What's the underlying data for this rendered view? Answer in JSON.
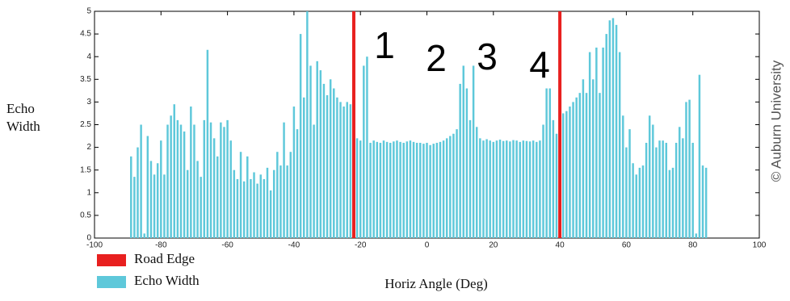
{
  "chart_data": {
    "type": "bar",
    "ylabel": "Echo Width",
    "xlabel": "Horiz Angle (Deg)",
    "watermark": "© Auburn University",
    "annotations": [
      "1",
      "2",
      "3",
      "4"
    ],
    "xlim": [
      -100,
      100
    ],
    "xticks": [
      -100,
      -80,
      -60,
      -40,
      -20,
      0,
      20,
      40,
      60,
      80,
      100
    ],
    "ylim": [
      0,
      5
    ],
    "yticks": [
      0,
      0.5,
      1,
      1.5,
      2,
      2.5,
      3,
      3.5,
      4,
      4.5,
      5
    ],
    "x": [
      -89,
      -88,
      -87,
      -86,
      -85,
      -84,
      -83,
      -82,
      -81,
      -80,
      -79,
      -78,
      -77,
      -76,
      -75,
      -74,
      -73,
      -72,
      -71,
      -70,
      -69,
      -68,
      -67,
      -66,
      -65,
      -64,
      -63,
      -62,
      -61,
      -60,
      -59,
      -58,
      -57,
      -56,
      -55,
      -54,
      -53,
      -52,
      -51,
      -50,
      -49,
      -48,
      -47,
      -46,
      -45,
      -44,
      -43,
      -42,
      -41,
      -40,
      -39,
      -38,
      -37,
      -36,
      -35,
      -34,
      -33,
      -32,
      -31,
      -30,
      -29,
      -28,
      -27,
      -26,
      -25,
      -24,
      -23,
      -22,
      -21,
      -20,
      -19,
      -18,
      -17,
      -16,
      -15,
      -14,
      -13,
      -12,
      -11,
      -10,
      -9,
      -8,
      -7,
      -6,
      -5,
      -4,
      -3,
      -2,
      -1,
      0,
      1,
      2,
      3,
      4,
      5,
      6,
      7,
      8,
      9,
      10,
      11,
      12,
      13,
      14,
      15,
      16,
      17,
      18,
      19,
      20,
      21,
      22,
      23,
      24,
      25,
      26,
      27,
      28,
      29,
      30,
      31,
      32,
      33,
      34,
      35,
      36,
      37,
      38,
      39,
      40,
      41,
      42,
      43,
      44,
      45,
      46,
      47,
      48,
      49,
      50,
      51,
      52,
      53,
      54,
      55,
      56,
      57,
      58,
      59,
      60,
      61,
      62,
      63,
      64,
      65,
      66,
      67,
      68,
      69,
      70,
      71,
      72,
      73,
      74,
      75,
      76,
      77,
      78,
      79,
      80,
      81,
      82,
      83,
      84
    ],
    "series": [
      {
        "name": "Echo Width",
        "color": "#5ec8da",
        "values": [
          1.8,
          1.35,
          2.0,
          2.5,
          0.1,
          2.25,
          1.7,
          1.4,
          1.65,
          2.15,
          1.4,
          2.5,
          2.7,
          2.95,
          2.6,
          2.5,
          2.35,
          1.5,
          2.9,
          2.5,
          1.7,
          1.35,
          2.6,
          4.15,
          2.55,
          2.2,
          1.8,
          2.55,
          2.45,
          2.6,
          2.15,
          1.5,
          1.3,
          1.9,
          1.25,
          1.8,
          1.3,
          1.45,
          1.2,
          1.4,
          1.3,
          1.55,
          1.05,
          1.5,
          1.9,
          1.6,
          2.55,
          1.6,
          1.9,
          2.9,
          2.4,
          4.5,
          3.1,
          5.0,
          3.8,
          2.5,
          3.9,
          3.7,
          3.4,
          3.15,
          3.5,
          3.3,
          3.1,
          3.0,
          2.9,
          3.0,
          2.95,
          2.85,
          2.2,
          2.15,
          3.8,
          4.0,
          2.1,
          2.15,
          2.12,
          2.1,
          2.15,
          2.12,
          2.1,
          2.13,
          2.15,
          2.12,
          2.1,
          2.13,
          2.15,
          2.12,
          2.1,
          2.1,
          2.08,
          2.1,
          2.05,
          2.08,
          2.1,
          2.12,
          2.15,
          2.2,
          2.25,
          2.3,
          2.4,
          3.4,
          3.8,
          3.3,
          2.6,
          3.8,
          2.45,
          2.2,
          2.15,
          2.18,
          2.15,
          2.12,
          2.15,
          2.17,
          2.14,
          2.15,
          2.13,
          2.16,
          2.15,
          2.12,
          2.15,
          2.14,
          2.13,
          2.15,
          2.12,
          2.15,
          2.5,
          3.3,
          3.3,
          2.6,
          2.3,
          2.55,
          2.75,
          2.8,
          2.9,
          3.0,
          3.1,
          3.2,
          3.5,
          3.2,
          4.1,
          3.5,
          4.2,
          3.2,
          4.2,
          4.5,
          4.8,
          4.85,
          4.7,
          4.1,
          2.7,
          2.0,
          2.4,
          1.65,
          1.4,
          1.55,
          1.6,
          2.1,
          2.7,
          2.5,
          2.0,
          2.15,
          2.15,
          2.1,
          1.5,
          1.55,
          2.1,
          2.45,
          2.2,
          3.0,
          3.05,
          2.1,
          0.1,
          3.6,
          1.6,
          1.55
        ]
      }
    ],
    "reference_lines": {
      "name": "Road Edge",
      "color": "#e8201f",
      "x": [
        -22,
        40
      ]
    }
  }
}
